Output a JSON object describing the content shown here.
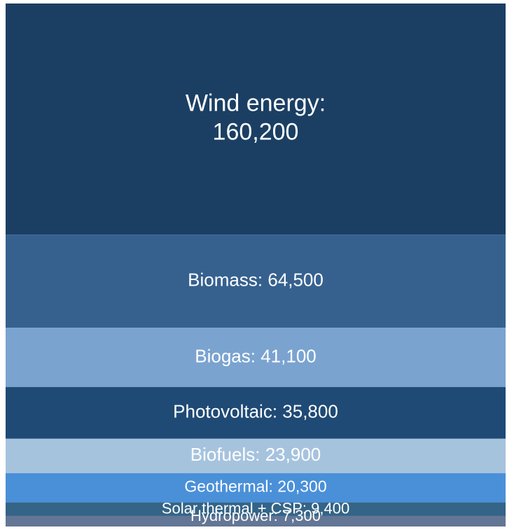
{
  "chart_data": {
    "type": "treemap",
    "categories": [
      "Wind energy:",
      "Biomass:",
      "Biogas:",
      "Photovoltaic:",
      "Biofuels:",
      "Geothermal:",
      "Solar thermal + CSP:",
      "Hydropower:"
    ],
    "values": [
      160200,
      64500,
      41100,
      35800,
      23900,
      20300,
      9400,
      7300
    ],
    "value_labels": [
      "160,200",
      "64,500",
      "41,100",
      "35,800",
      "23,900",
      "20,300",
      "9,400",
      "7,300"
    ],
    "colors": [
      "#1b3f63",
      "#36618f",
      "#7aa3d0",
      "#1f4a75",
      "#a6c3de",
      "#4a90d9",
      "#346487",
      "#637696"
    ]
  }
}
